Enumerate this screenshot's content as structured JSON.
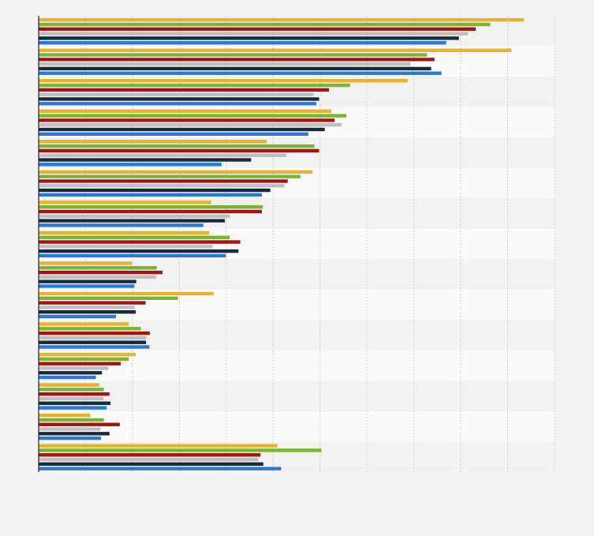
{
  "chart_data": {
    "type": "bar",
    "orientation": "horizontal",
    "categories": [
      "",
      "",
      "",
      "",
      "",
      "",
      "",
      "",
      "",
      "",
      "",
      "",
      "",
      "",
      ""
    ],
    "xlim": [
      0,
      11
    ],
    "grid": true,
    "legend": "none",
    "series": [
      {
        "color": "#e8b130",
        "values": [
          10.35,
          10.08,
          7.87,
          6.24,
          4.86,
          5.84,
          3.68,
          3.64,
          1.99,
          3.73,
          1.92,
          2.07,
          1.29,
          1.1,
          5.09
        ]
      },
      {
        "color": "#7ab431",
        "values": [
          9.63,
          8.28,
          6.64,
          6.56,
          5.88,
          5.58,
          4.78,
          4.07,
          2.52,
          2.97,
          2.18,
          1.92,
          1.39,
          1.39,
          6.03
        ]
      },
      {
        "color": "#a31515",
        "values": [
          9.32,
          8.44,
          6.19,
          6.31,
          5.98,
          5.31,
          4.76,
          4.3,
          2.64,
          2.28,
          2.37,
          1.75,
          1.51,
          1.73,
          4.73
        ]
      },
      {
        "color": "#c0bfbf",
        "values": [
          9.15,
          7.93,
          5.86,
          6.46,
          5.28,
          5.24,
          4.08,
          3.71,
          2.51,
          2.05,
          2.3,
          1.49,
          1.38,
          1.32,
          4.68
        ]
      },
      {
        "color": "#1a2a3d",
        "values": [
          8.96,
          8.37,
          5.98,
          6.1,
          4.53,
          4.94,
          3.97,
          4.26,
          2.08,
          2.07,
          2.29,
          1.35,
          1.53,
          1.51,
          4.79
        ]
      },
      {
        "color": "#2a79d7",
        "values": [
          8.69,
          8.59,
          5.92,
          5.75,
          3.9,
          4.76,
          3.51,
          3.99,
          2.04,
          1.65,
          2.36,
          1.22,
          1.45,
          1.33,
          5.17
        ]
      }
    ]
  }
}
